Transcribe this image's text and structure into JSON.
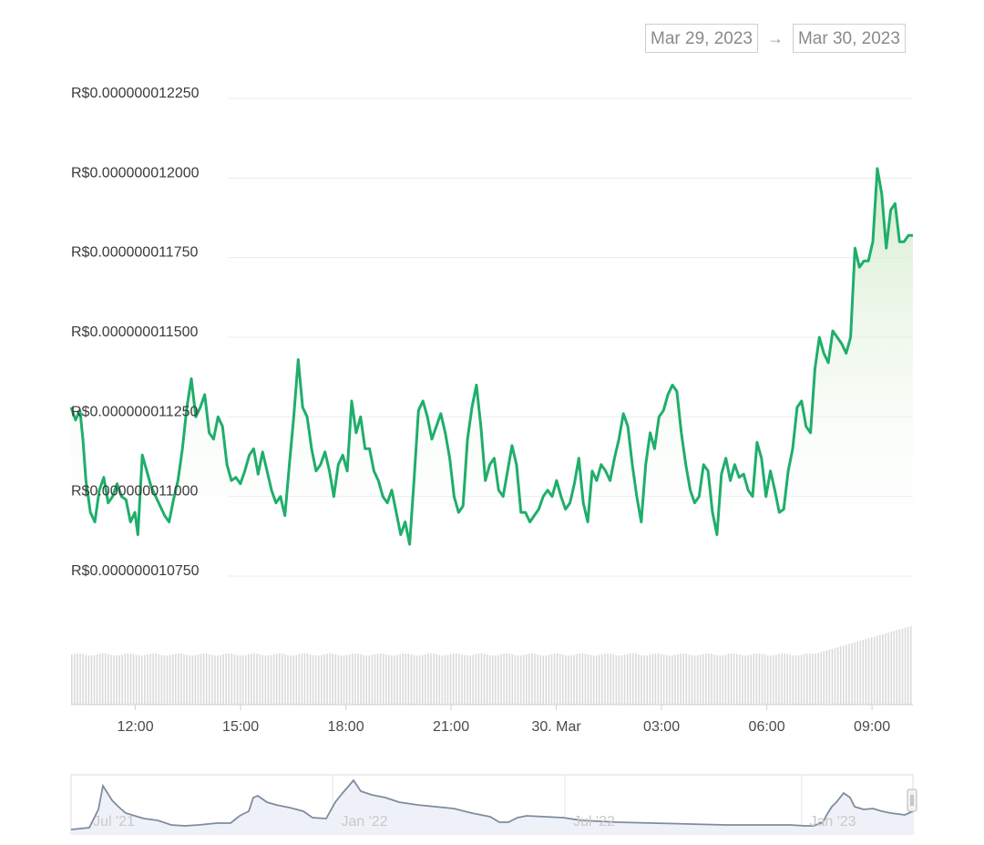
{
  "range_selector": {
    "from": "Mar 29, 2023",
    "arrow": "→",
    "to": "Mar 30, 2023"
  },
  "colors": {
    "line": "#1fae6b",
    "area_top": "#d8efd2",
    "volume": "#dadada",
    "grid": "#ececec",
    "navigator_line": "#7f8c9f",
    "navigator_fill": "#eef2f8"
  },
  "chart_data": {
    "type": "line",
    "title": "",
    "xlabel": "",
    "ylabel": "",
    "ylim": [
      1.075e-08,
      1.225e-08
    ],
    "y_ticks": [
      {
        "value": 1.225e-08,
        "label": "R$0.000000012250"
      },
      {
        "value": 1.2e-08,
        "label": "R$0.000000012000"
      },
      {
        "value": 1.175e-08,
        "label": "R$0.000000011750"
      },
      {
        "value": 1.15e-08,
        "label": "R$0.000000011500"
      },
      {
        "value": 1.125e-08,
        "label": "R$0.000000011250"
      },
      {
        "value": 1.1e-08,
        "label": "R$0.000000011000"
      },
      {
        "value": 1.075e-08,
        "label": "R$0.000000010750"
      }
    ],
    "x_range": [
      "2023-03-29T10:10",
      "2023-03-30T10:10"
    ],
    "x_ticks": [
      {
        "time": "2023-03-29T12:00",
        "label": "12:00"
      },
      {
        "time": "2023-03-29T15:00",
        "label": "15:00"
      },
      {
        "time": "2023-03-29T18:00",
        "label": "18:00"
      },
      {
        "time": "2023-03-29T21:00",
        "label": "21:00"
      },
      {
        "time": "2023-03-30T00:00",
        "label": "30. Mar"
      },
      {
        "time": "2023-03-30T03:00",
        "label": "03:00"
      },
      {
        "time": "2023-03-30T06:00",
        "label": "06:00"
      },
      {
        "time": "2023-03-30T09:00",
        "label": "09:00"
      }
    ],
    "series": [
      {
        "values": [
          [
            0,
            11.28
          ],
          [
            3,
            11.24
          ],
          [
            6,
            11.27
          ],
          [
            8,
            11.18
          ],
          [
            10,
            11.05
          ],
          [
            13,
            10.95
          ],
          [
            16,
            10.92
          ],
          [
            19,
            11.02
          ],
          [
            22,
            11.06
          ],
          [
            25,
            10.98
          ],
          [
            28,
            11.0
          ],
          [
            31,
            11.04
          ],
          [
            34,
            11.0
          ],
          [
            37,
            10.99
          ],
          [
            40,
            10.92
          ],
          [
            43,
            10.95
          ],
          [
            45,
            10.88
          ],
          [
            48,
            11.13
          ],
          [
            51,
            11.08
          ],
          [
            54,
            11.03
          ],
          [
            57,
            11.0
          ],
          [
            60,
            10.97
          ],
          [
            63,
            10.94
          ],
          [
            66,
            10.92
          ],
          [
            69,
            10.99
          ],
          [
            72,
            11.05
          ],
          [
            75,
            11.15
          ],
          [
            78,
            11.28
          ],
          [
            81,
            11.37
          ],
          [
            84,
            11.25
          ],
          [
            87,
            11.28
          ],
          [
            90,
            11.32
          ],
          [
            93,
            11.2
          ],
          [
            96,
            11.18
          ],
          [
            99,
            11.25
          ],
          [
            102,
            11.22
          ],
          [
            105,
            11.1
          ],
          [
            108,
            11.05
          ],
          [
            111,
            11.06
          ],
          [
            114,
            11.04
          ],
          [
            117,
            11.08
          ],
          [
            120,
            11.13
          ],
          [
            123,
            11.15
          ],
          [
            126,
            11.07
          ],
          [
            129,
            11.14
          ],
          [
            132,
            11.08
          ],
          [
            135,
            11.02
          ],
          [
            138,
            10.98
          ],
          [
            141,
            11.0
          ],
          [
            144,
            10.94
          ],
          [
            147,
            11.1
          ],
          [
            150,
            11.25
          ],
          [
            153,
            11.43
          ],
          [
            156,
            11.28
          ],
          [
            159,
            11.25
          ],
          [
            162,
            11.15
          ],
          [
            165,
            11.08
          ],
          [
            168,
            11.1
          ],
          [
            171,
            11.14
          ],
          [
            174,
            11.08
          ],
          [
            177,
            11.0
          ],
          [
            180,
            11.1
          ],
          [
            183,
            11.13
          ],
          [
            186,
            11.08
          ],
          [
            189,
            11.3
          ],
          [
            192,
            11.2
          ],
          [
            195,
            11.25
          ],
          [
            198,
            11.15
          ],
          [
            201,
            11.15
          ],
          [
            204,
            11.08
          ],
          [
            207,
            11.05
          ],
          [
            210,
            11.0
          ],
          [
            213,
            10.98
          ],
          [
            216,
            11.02
          ],
          [
            219,
            10.95
          ],
          [
            222,
            10.88
          ],
          [
            225,
            10.92
          ],
          [
            228,
            10.85
          ],
          [
            231,
            11.05
          ],
          [
            234,
            11.27
          ],
          [
            237,
            11.3
          ],
          [
            240,
            11.25
          ],
          [
            243,
            11.18
          ],
          [
            246,
            11.22
          ],
          [
            249,
            11.26
          ],
          [
            252,
            11.2
          ],
          [
            255,
            11.12
          ],
          [
            258,
            11.0
          ],
          [
            261,
            10.95
          ],
          [
            264,
            10.97
          ],
          [
            267,
            11.18
          ],
          [
            270,
            11.28
          ],
          [
            273,
            11.35
          ],
          [
            276,
            11.22
          ],
          [
            279,
            11.05
          ],
          [
            282,
            11.1
          ],
          [
            285,
            11.12
          ],
          [
            288,
            11.02
          ],
          [
            291,
            11.0
          ],
          [
            294,
            11.08
          ],
          [
            297,
            11.16
          ],
          [
            300,
            11.1
          ],
          [
            303,
            10.95
          ],
          [
            306,
            10.95
          ],
          [
            309,
            10.92
          ],
          [
            312,
            10.94
          ],
          [
            315,
            10.96
          ],
          [
            318,
            11.0
          ],
          [
            321,
            11.02
          ],
          [
            324,
            11.0
          ],
          [
            327,
            11.05
          ],
          [
            330,
            11.0
          ],
          [
            333,
            10.96
          ],
          [
            336,
            10.98
          ],
          [
            339,
            11.04
          ],
          [
            342,
            11.12
          ],
          [
            345,
            10.98
          ],
          [
            348,
            10.92
          ],
          [
            351,
            11.08
          ],
          [
            354,
            11.05
          ],
          [
            357,
            11.1
          ],
          [
            360,
            11.08
          ],
          [
            363,
            11.05
          ],
          [
            366,
            11.12
          ],
          [
            369,
            11.18
          ],
          [
            372,
            11.26
          ],
          [
            375,
            11.22
          ],
          [
            378,
            11.1
          ],
          [
            381,
            11.0
          ],
          [
            384,
            10.92
          ],
          [
            387,
            11.1
          ],
          [
            390,
            11.2
          ],
          [
            393,
            11.15
          ],
          [
            396,
            11.25
          ],
          [
            399,
            11.27
          ],
          [
            402,
            11.32
          ],
          [
            405,
            11.35
          ],
          [
            408,
            11.33
          ],
          [
            411,
            11.2
          ],
          [
            414,
            11.1
          ],
          [
            417,
            11.02
          ],
          [
            420,
            10.98
          ],
          [
            423,
            11.0
          ],
          [
            426,
            11.1
          ],
          [
            429,
            11.08
          ],
          [
            432,
            10.95
          ],
          [
            435,
            10.88
          ],
          [
            438,
            11.07
          ],
          [
            441,
            11.12
          ],
          [
            444,
            11.05
          ],
          [
            447,
            11.1
          ],
          [
            450,
            11.06
          ],
          [
            453,
            11.07
          ],
          [
            456,
            11.02
          ],
          [
            459,
            11.0
          ],
          [
            462,
            11.17
          ],
          [
            465,
            11.12
          ],
          [
            468,
            11.0
          ],
          [
            471,
            11.08
          ],
          [
            474,
            11.02
          ],
          [
            477,
            10.95
          ],
          [
            480,
            10.96
          ],
          [
            483,
            11.08
          ],
          [
            486,
            11.15
          ],
          [
            489,
            11.28
          ],
          [
            492,
            11.3
          ],
          [
            495,
            11.22
          ],
          [
            498,
            11.2
          ],
          [
            501,
            11.4
          ],
          [
            504,
            11.5
          ],
          [
            507,
            11.45
          ],
          [
            510,
            11.42
          ],
          [
            513,
            11.52
          ],
          [
            516,
            11.5
          ],
          [
            519,
            11.48
          ],
          [
            522,
            11.45
          ],
          [
            525,
            11.5
          ],
          [
            528,
            11.78
          ],
          [
            531,
            11.72
          ],
          [
            534,
            11.74
          ],
          [
            537,
            11.74
          ],
          [
            540,
            11.8
          ],
          [
            543,
            12.03
          ],
          [
            546,
            11.95
          ],
          [
            549,
            11.78
          ],
          [
            552,
            11.9
          ],
          [
            555,
            11.92
          ],
          [
            558,
            11.8
          ],
          [
            561,
            11.8
          ],
          [
            564,
            11.82
          ],
          [
            567,
            11.82
          ]
        ]
      }
    ],
    "value_scale_note": "",
    "navigator": {
      "x_ticks": [
        "Jul '21",
        "Jan '22",
        "Jul '22",
        "Jan '23"
      ]
    }
  }
}
